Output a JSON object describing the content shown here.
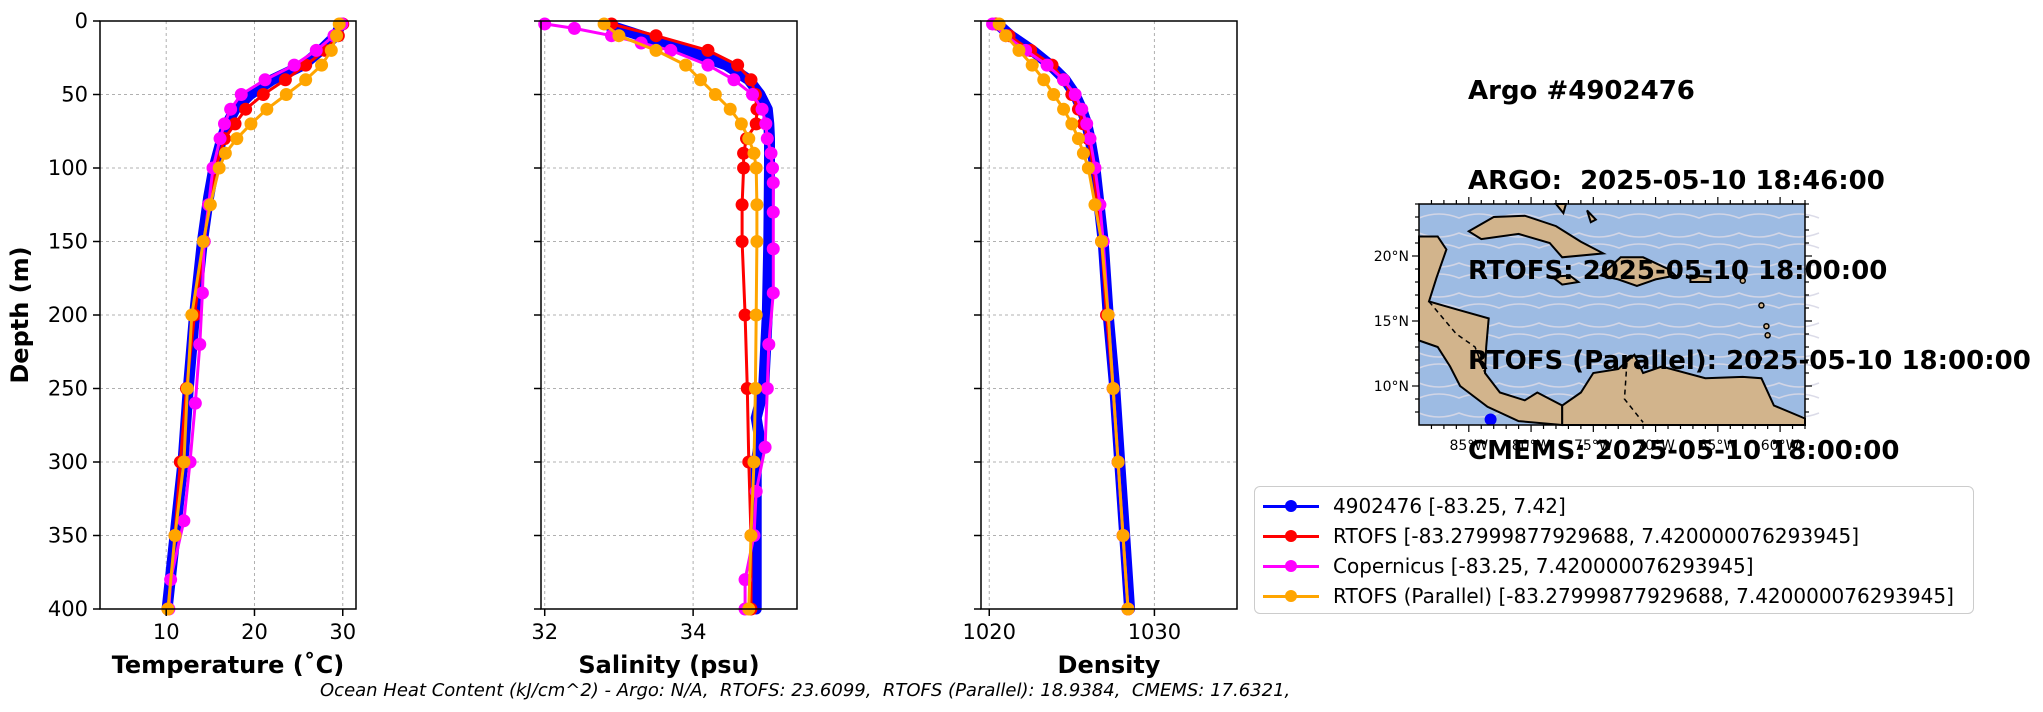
{
  "title_lines": [
    "Argo #4902476",
    "ARGO:  2025-05-10 18:46:00",
    "RTOFS: 2025-05-10 18:00:00",
    "RTOFS (Parallel): 2025-05-10 18:00:00",
    "CMEMS: 2025-05-10 18:00:00"
  ],
  "footnote": "Ocean Heat Content (kJ/cm^2) - Argo: N/A,  RTOFS: 23.6099,  RTOFS (Parallel): 18.9384,  CMEMS: 17.6321,",
  "legend": [
    {
      "label": "4902476 [-83.25, 7.42]",
      "color": "#0000ff"
    },
    {
      "label": "RTOFS [-83.27999877929688, 7.420000076293945]",
      "color": "#ff0000"
    },
    {
      "label": "Copernicus [-83.25, 7.420000076293945]",
      "color": "#ff00ff"
    },
    {
      "label": "RTOFS (Parallel) [-83.27999877929688, 7.420000076293945]",
      "color": "#ffa500"
    }
  ],
  "map": {
    "lon_ticks": [
      "85°W",
      "80°W",
      "75°W",
      "70°W",
      "65°W",
      "60°W"
    ],
    "lat_ticks": [
      "20°N",
      "15°N",
      "10°N"
    ],
    "lon_range": [
      -89,
      -58
    ],
    "lat_range": [
      7,
      24
    ],
    "float_position": [
      -83.25,
      7.42
    ],
    "ocean_color": "#9dbbe3",
    "land_color": "#d2b48c"
  },
  "chart_data": [
    {
      "type": "line",
      "xlabel": "Temperature (˚C)",
      "ylabel": "Depth (m)",
      "xlim": [
        2.5,
        31.5
      ],
      "ylim": [
        400,
        0
      ],
      "xticks": [
        10,
        20,
        30
      ],
      "yticks": [
        0,
        50,
        100,
        150,
        200,
        250,
        300,
        350,
        400
      ],
      "grid": true,
      "series": [
        {
          "name": "4902476 [-83.25, 7.42]",
          "color": "#0000ff",
          "markers": false,
          "depth": [
            2,
            10,
            20,
            30,
            40,
            50,
            60,
            70,
            80,
            100,
            120,
            150,
            200,
            250,
            300,
            350,
            400
          ],
          "values": [
            29.8,
            29.2,
            27.5,
            25.5,
            22.0,
            19.5,
            17.8,
            16.9,
            16.3,
            15.4,
            14.8,
            14.1,
            13.2,
            12.5,
            11.9,
            11.0,
            10.1
          ]
        },
        {
          "name": "RTOFS [-83.27999877929688, 7.420000076293945]",
          "color": "#ff0000",
          "markers": true,
          "depth": [
            2,
            10,
            20,
            30,
            40,
            50,
            60,
            70,
            80,
            100,
            125,
            150,
            200,
            250,
            300,
            350,
            400
          ],
          "values": [
            30.0,
            29.5,
            28.0,
            25.8,
            23.5,
            21.0,
            19.0,
            17.8,
            16.6,
            15.6,
            14.8,
            14.3,
            13.2,
            12.3,
            11.6,
            11.0,
            10.2
          ]
        },
        {
          "name": "Copernicus [-83.25, 7.420000076293945]",
          "color": "#ff00ff",
          "markers": true,
          "depth": [
            2,
            10,
            20,
            30,
            40,
            50,
            60,
            70,
            80,
            100,
            125,
            150,
            185,
            220,
            260,
            300,
            340,
            380,
            400
          ],
          "values": [
            29.9,
            29.0,
            27.0,
            24.5,
            21.2,
            18.5,
            17.3,
            16.6,
            16.1,
            15.3,
            14.8,
            14.3,
            14.1,
            13.8,
            13.3,
            12.7,
            12.0,
            10.5,
            10.3
          ]
        },
        {
          "name": "RTOFS (Parallel) [-83.27999877929688, 7.420000076293945]",
          "color": "#ffa500",
          "markers": true,
          "depth": [
            2,
            10,
            20,
            30,
            40,
            50,
            60,
            70,
            80,
            90,
            100,
            125,
            150,
            200,
            250,
            300,
            350,
            400
          ],
          "values": [
            29.6,
            29.3,
            28.7,
            27.6,
            25.8,
            23.6,
            21.4,
            19.6,
            18.0,
            16.7,
            16.0,
            15.0,
            14.2,
            12.9,
            12.4,
            12.0,
            11.0,
            10.2
          ]
        }
      ]
    },
    {
      "type": "line",
      "xlabel": "Salinity (psu)",
      "xlim": [
        31.95,
        35.4
      ],
      "ylim": [
        400,
        0
      ],
      "xticks": [
        32,
        34
      ],
      "xtick_labels": [
        "32",
        "34"
      ],
      "grid": true,
      "series": [
        {
          "name": "4902476 [-83.25, 7.42]",
          "color": "#0000ff",
          "markers": false,
          "depth": [
            2,
            10,
            20,
            30,
            40,
            50,
            60,
            70,
            80,
            100,
            150,
            200,
            250,
            270,
            285,
            300,
            350,
            400
          ],
          "values": [
            32.8,
            33.3,
            33.9,
            34.45,
            34.75,
            34.9,
            35.0,
            35.02,
            35.03,
            35.03,
            35.02,
            35.0,
            34.95,
            34.85,
            34.9,
            34.85,
            34.85,
            34.85
          ]
        },
        {
          "name": "RTOFS [-83.27999877929688, 7.420000076293945]",
          "color": "#ff0000",
          "markers": true,
          "depth": [
            2,
            10,
            20,
            30,
            40,
            50,
            60,
            70,
            80,
            90,
            100,
            125,
            150,
            200,
            250,
            300,
            350,
            400
          ],
          "values": [
            32.9,
            33.5,
            34.2,
            34.6,
            34.78,
            34.84,
            34.86,
            34.85,
            34.72,
            34.68,
            34.68,
            34.66,
            34.66,
            34.7,
            34.73,
            34.75,
            34.78,
            34.78
          ]
        },
        {
          "name": "Copernicus [-83.25, 7.420000076293945]",
          "color": "#ff00ff",
          "markers": true,
          "depth": [
            2,
            5,
            10,
            15,
            20,
            30,
            40,
            50,
            60,
            70,
            80,
            90,
            100,
            110,
            130,
            155,
            185,
            220,
            250,
            290,
            320,
            350,
            380,
            400
          ],
          "values": [
            32.0,
            32.4,
            32.9,
            33.3,
            33.7,
            34.2,
            34.55,
            34.8,
            34.93,
            34.98,
            35.0,
            35.05,
            35.07,
            35.08,
            35.08,
            35.08,
            35.08,
            35.02,
            35.0,
            34.97,
            34.85,
            34.82,
            34.7,
            34.7
          ]
        },
        {
          "name": "RTOFS (Parallel) [-83.27999877929688, 7.420000076293945]",
          "color": "#ffa500",
          "markers": true,
          "depth": [
            2,
            10,
            20,
            30,
            40,
            50,
            60,
            70,
            80,
            90,
            100,
            125,
            150,
            200,
            250,
            300,
            350,
            400
          ],
          "values": [
            32.8,
            33.0,
            33.5,
            33.9,
            34.1,
            34.3,
            34.5,
            34.65,
            34.75,
            34.82,
            34.85,
            34.86,
            34.86,
            34.85,
            34.84,
            34.82,
            34.78,
            34.75
          ]
        }
      ]
    },
    {
      "type": "line",
      "xlabel": "Density",
      "xlim": [
        1019.5,
        1035
      ],
      "ylim": [
        400,
        0
      ],
      "xticks": [
        1020,
        1030
      ],
      "grid": true,
      "series": [
        {
          "name": "4902476 [-83.25, 7.42]",
          "color": "#0000ff",
          "markers": false,
          "depth": [
            2,
            10,
            20,
            30,
            40,
            50,
            60,
            70,
            80,
            100,
            150,
            200,
            250,
            300,
            350,
            400
          ],
          "values": [
            1020.5,
            1021.3,
            1022.6,
            1023.7,
            1024.6,
            1025.2,
            1025.6,
            1025.9,
            1026.1,
            1026.4,
            1026.9,
            1027.2,
            1027.6,
            1027.9,
            1028.2,
            1028.5
          ]
        },
        {
          "name": "RTOFS [-83.27999877929688, 7.420000076293945]",
          "color": "#ff0000",
          "markers": true,
          "depth": [
            2,
            10,
            20,
            30,
            40,
            50,
            60,
            70,
            80,
            100,
            150,
            200,
            250,
            300,
            350,
            400
          ],
          "values": [
            1020.4,
            1021.2,
            1022.5,
            1023.8,
            1024.5,
            1025.0,
            1025.4,
            1025.7,
            1026.0,
            1026.3,
            1026.8,
            1027.1,
            1027.5,
            1027.8,
            1028.1,
            1028.4
          ]
        },
        {
          "name": "Copernicus [-83.25, 7.420000076293945]",
          "color": "#ff00ff",
          "markers": true,
          "depth": [
            2,
            10,
            20,
            30,
            40,
            50,
            60,
            70,
            80,
            100,
            125,
            150,
            200,
            250,
            300,
            350,
            400
          ],
          "values": [
            1020.2,
            1021.0,
            1022.2,
            1023.5,
            1024.5,
            1025.2,
            1025.6,
            1025.9,
            1026.1,
            1026.4,
            1026.7,
            1026.9,
            1027.2,
            1027.5,
            1027.8,
            1028.1,
            1028.4
          ]
        },
        {
          "name": "RTOFS (Parallel) [-83.27999877929688, 7.420000076293945]",
          "color": "#ffa500",
          "markers": true,
          "depth": [
            2,
            10,
            20,
            30,
            40,
            50,
            60,
            70,
            80,
            90,
            100,
            125,
            150,
            200,
            250,
            300,
            350,
            400
          ],
          "values": [
            1020.6,
            1021.0,
            1021.8,
            1022.6,
            1023.3,
            1023.9,
            1024.5,
            1025.0,
            1025.4,
            1025.7,
            1026.0,
            1026.4,
            1026.8,
            1027.2,
            1027.5,
            1027.8,
            1028.1,
            1028.4
          ]
        }
      ]
    }
  ]
}
